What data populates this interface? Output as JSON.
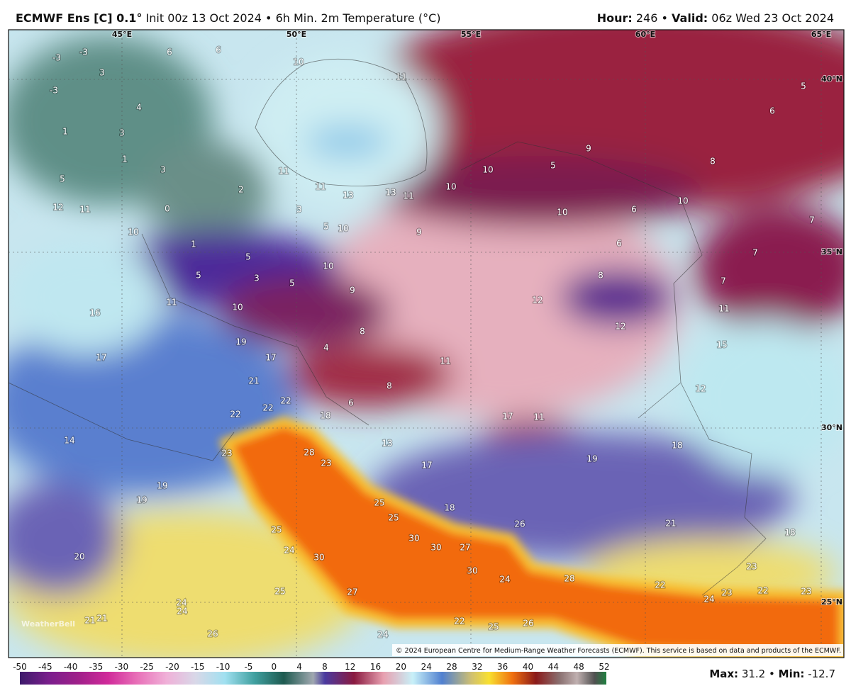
{
  "header": {
    "model": "ECMWF Ens [C] 0.1°",
    "rest": "Init 00z 13 Oct 2024 • 6h Min. 2m Temperature (°C)",
    "hour_label": "Hour:",
    "hour": 246,
    "bullet": "•",
    "valid_label": "Valid:",
    "valid": "06z Wed 23 Oct 2024"
  },
  "map": {
    "longitudes": [
      "45°E",
      "50°E",
      "55°E",
      "60°E",
      "65°E"
    ],
    "latitudes": [
      "40°N",
      "35°N",
      "30°N",
      "25°N"
    ],
    "labels": [
      -3,
      -3,
      -3,
      3,
      4,
      1,
      3,
      1,
      3,
      5,
      12,
      11,
      0,
      2,
      3,
      10,
      1,
      5,
      5,
      3,
      5,
      11,
      10,
      16,
      17,
      19,
      17,
      21,
      22,
      22,
      22,
      18,
      14,
      23,
      28,
      23,
      19,
      19,
      13,
      17,
      18,
      25,
      25,
      25,
      24,
      30,
      30,
      30,
      27,
      30,
      26,
      20,
      25,
      27,
      24,
      24,
      21,
      21,
      26,
      24,
      22,
      25,
      26,
      24,
      28,
      22,
      24,
      23,
      22,
      23,
      23,
      21,
      18,
      19,
      18,
      17,
      11,
      11,
      8,
      6,
      4,
      8,
      9,
      10,
      5,
      10,
      9,
      13,
      13,
      11,
      10,
      11,
      11,
      10,
      5,
      9,
      10,
      6,
      6,
      8,
      12,
      12,
      11,
      15,
      12,
      7,
      7,
      7,
      10,
      8,
      6,
      5,
      11,
      10,
      6,
      6
    ],
    "copyright": "© 2024 European Centre for Medium-Range Weather Forecasts (ECMWF). This service is based on data and products of the ECMWF.",
    "logo": "WeatherBell"
  },
  "colorbar": {
    "ticks": [
      -50,
      -45,
      -40,
      -35,
      -30,
      -25,
      -20,
      -15,
      -10,
      -5,
      0,
      4,
      8,
      12,
      16,
      20,
      24,
      28,
      32,
      36,
      40,
      44,
      48,
      52
    ]
  },
  "footer": {
    "max_label": "Max:",
    "max": 31.2,
    "bullet": "•",
    "min_label": "Min:",
    "min": -12.7
  }
}
